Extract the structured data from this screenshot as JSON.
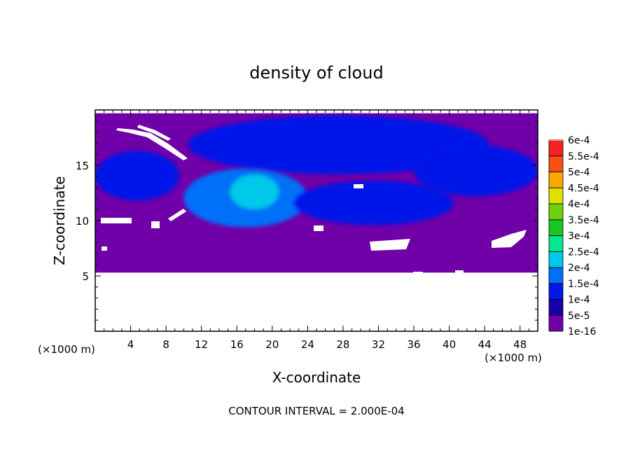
{
  "chart_data": {
    "type": "heatmap",
    "title": "density of cloud",
    "xlabel": "X-coordinate",
    "ylabel": "Z-coordinate",
    "x_unit_label": "(×1000 m)",
    "y_unit_label": "(×1000 m)",
    "xlim": [
      0,
      50
    ],
    "ylim": [
      0,
      20
    ],
    "x_ticks": [
      4,
      8,
      12,
      16,
      20,
      24,
      28,
      32,
      36,
      40,
      44,
      48
    ],
    "y_ticks": [
      5,
      10,
      15
    ],
    "footer": "CONTOUR INTERVAL = 2.000E-04",
    "colorbar": {
      "labels": [
        "1e-16",
        "5e-5",
        "1e-4",
        "1.5e-4",
        "2e-4",
        "2.5e-4",
        "3e-4",
        "3.5e-4",
        "4e-4",
        "4.5e-4",
        "5e-4",
        "5.5e-4",
        "6e-4"
      ],
      "colors": [
        "#7000a8",
        "#1800a8",
        "#0018e8",
        "#0070f8",
        "#00c8e8",
        "#00e890",
        "#18c820",
        "#70d010",
        "#e0e000",
        "#f8a800",
        "#f85010",
        "#f82020",
        "#f89090"
      ]
    },
    "regions": [
      {
        "name": "base-layer",
        "level": "1e-16",
        "x": [
          0,
          50
        ],
        "z": [
          5.3,
          19.7
        ]
      },
      {
        "name": "upper-cloud-band",
        "level": "1e-4",
        "x": [
          10.5,
          44.5
        ],
        "z": [
          14.2,
          19.5
        ]
      },
      {
        "name": "left-cloud-band",
        "level": "1e-4",
        "x": [
          0,
          9.5
        ],
        "z": [
          11.8,
          16.3
        ]
      },
      {
        "name": "right-cloud-band",
        "level": "1e-4",
        "x": [
          36,
          50
        ],
        "z": [
          12.2,
          16.8
        ]
      },
      {
        "name": "central-cloud",
        "level": "1.5e-4",
        "x": [
          10,
          24
        ],
        "z": [
          9.4,
          14.7
        ]
      },
      {
        "name": "central-core",
        "level": "2e-4",
        "x": [
          15.2,
          20.8
        ],
        "z": [
          11.0,
          14.2
        ]
      },
      {
        "name": "mid-cloud",
        "level": "1e-4",
        "x": [
          22.5,
          40.5
        ],
        "z": [
          9.6,
          13.6
        ]
      }
    ],
    "grid": false,
    "legend": "right"
  }
}
